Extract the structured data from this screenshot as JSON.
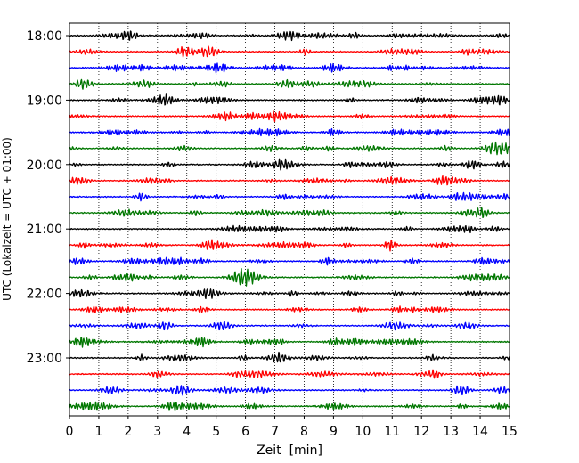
{
  "chart_data": {
    "type": "line",
    "title": "",
    "xlabel": "Zeit  [min]",
    "ylabel": "UTC (Lokalzeit = UTC + 01:00)",
    "xlim": [
      0,
      15
    ],
    "x_ticks": [
      0,
      1,
      2,
      3,
      4,
      5,
      6,
      7,
      8,
      9,
      10,
      11,
      12,
      13,
      14,
      15
    ],
    "x_tick_labels": [
      "0",
      "1",
      "2",
      "3",
      "4",
      "5",
      "6",
      "7",
      "8",
      "9",
      "10",
      "11",
      "12",
      "13",
      "14",
      "15"
    ],
    "y_tick_labels": [
      "18:00",
      "19:00",
      "20:00",
      "21:00",
      "22:00",
      "23:00"
    ],
    "y_tick_trace_index": [
      0,
      4,
      8,
      12,
      16,
      20
    ],
    "vertical_grid": true,
    "grid_style": "dotted",
    "trace_minutes_each": 15,
    "trace_count": 24,
    "trace_start_times": [
      "18:00",
      "18:15",
      "18:30",
      "18:45",
      "19:00",
      "19:15",
      "19:30",
      "19:45",
      "20:00",
      "20:15",
      "20:30",
      "20:45",
      "21:00",
      "21:15",
      "21:30",
      "21:45",
      "22:00",
      "22:15",
      "22:30",
      "22:45",
      "23:00",
      "23:15",
      "23:30",
      "23:45"
    ],
    "trace_colors_cycle": [
      "#000000",
      "#ff0000",
      "#0000ff",
      "#007700"
    ],
    "signal": "seismogram (helicorder); continuous small-amplitude noise on every trace"
  }
}
